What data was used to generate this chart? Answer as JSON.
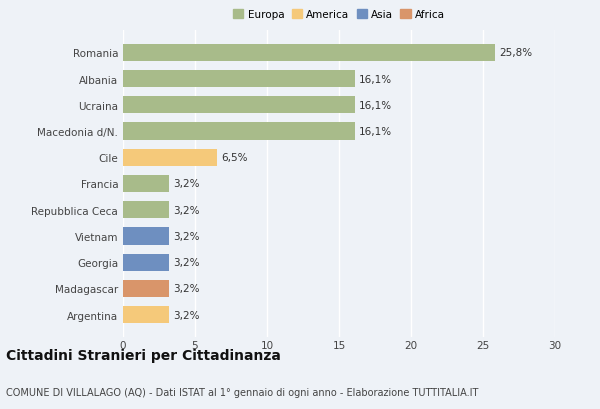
{
  "categories": [
    "Romania",
    "Albania",
    "Ucraina",
    "Macedonia d/N.",
    "Cile",
    "Francia",
    "Repubblica Ceca",
    "Vietnam",
    "Georgia",
    "Madagascar",
    "Argentina"
  ],
  "values": [
    25.8,
    16.1,
    16.1,
    16.1,
    6.5,
    3.2,
    3.2,
    3.2,
    3.2,
    3.2,
    3.2
  ],
  "bar_colors": [
    "#a8bb8a",
    "#a8bb8a",
    "#a8bb8a",
    "#a8bb8a",
    "#f5c97a",
    "#a8bb8a",
    "#a8bb8a",
    "#6e8fc0",
    "#6e8fc0",
    "#d9956a",
    "#f5c97a"
  ],
  "labels": [
    "25,8%",
    "16,1%",
    "16,1%",
    "16,1%",
    "6,5%",
    "3,2%",
    "3,2%",
    "3,2%",
    "3,2%",
    "3,2%",
    "3,2%"
  ],
  "legend_labels": [
    "Europa",
    "America",
    "Asia",
    "Africa"
  ],
  "legend_colors": [
    "#a8bb8a",
    "#f5c97a",
    "#6e8fc0",
    "#d9956a"
  ],
  "xlim": [
    0,
    30
  ],
  "xticks": [
    0,
    5,
    10,
    15,
    20,
    25,
    30
  ],
  "title": "Cittadini Stranieri per Cittadinanza",
  "subtitle": "COMUNE DI VILLALAGO (AQ) - Dati ISTAT al 1° gennaio di ogni anno - Elaborazione TUTTITALIA.IT",
  "background_color": "#eef2f7",
  "grid_color": "#ffffff",
  "title_fontsize": 10,
  "subtitle_fontsize": 7,
  "label_fontsize": 7.5,
  "tick_fontsize": 7.5,
  "bar_height": 0.65
}
